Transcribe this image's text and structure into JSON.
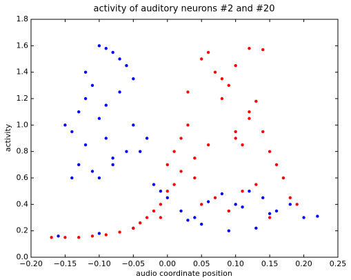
{
  "chart_data": {
    "type": "scatter",
    "title": "activity of auditory neurons #2 and #20",
    "x_label": "audio coordinate position",
    "y_label": "activity",
    "xlim": [
      -0.2,
      0.25
    ],
    "ylim": [
      0,
      1.8
    ],
    "xticks": [
      {
        "value": -0.2,
        "label": "−0.20"
      },
      {
        "value": -0.15,
        "label": "−0.15"
      },
      {
        "value": -0.1,
        "label": "−0.10"
      },
      {
        "value": -0.05,
        "label": "−0.05"
      },
      {
        "value": 0,
        "label": "0.00"
      },
      {
        "value": 0.05,
        "label": "0.05"
      },
      {
        "value": 0.1,
        "label": "0.10"
      },
      {
        "value": 0.15,
        "label": "0.15"
      },
      {
        "value": 0.2,
        "label": "0.20"
      },
      {
        "value": 0.25,
        "label": "0.25"
      }
    ],
    "yticks": [
      {
        "value": 0,
        "label": "0.0"
      },
      0.2,
      0.4,
      0.6,
      0.8,
      {
        "value": 1,
        "label": "1.0"
      },
      1.2,
      1.4,
      1.6,
      1.8
    ],
    "grid": false,
    "series": [
      {
        "color": "#0000ff",
        "x": [
          -0.12,
          -0.1,
          -0.09,
          -0.08,
          -0.11,
          -0.13,
          -0.14,
          -0.1,
          -0.07,
          -0.06,
          -0.05,
          -0.09,
          -0.12,
          -0.08,
          -0.04,
          -0.15,
          -0.13,
          -0.11,
          -0.09,
          -0.07,
          -0.05,
          -0.03,
          -0.1,
          -0.08,
          -0.06,
          -0.12,
          -0.14,
          -0.02,
          -0.01,
          0.0,
          0.02,
          0.04,
          0.06,
          0.08,
          0.1,
          0.12,
          0.14,
          0.16,
          0.18,
          0.2,
          0.22,
          0.05,
          0.09,
          0.13,
          0.03,
          0.11,
          0.15,
          -0.16,
          -0.1,
          -0.05
        ],
        "y": [
          1.2,
          1.6,
          1.58,
          1.55,
          1.3,
          1.1,
          0.95,
          1.05,
          1.5,
          1.45,
          1.35,
          0.9,
          0.85,
          0.75,
          0.8,
          1.0,
          0.7,
          0.65,
          1.15,
          1.25,
          1.0,
          0.9,
          0.6,
          0.7,
          0.8,
          1.4,
          0.6,
          0.55,
          0.5,
          0.45,
          0.35,
          0.3,
          0.42,
          0.48,
          0.4,
          0.5,
          0.45,
          0.35,
          0.4,
          0.3,
          0.31,
          0.25,
          0.2,
          0.22,
          0.28,
          0.38,
          0.33,
          0.16,
          0.18,
          0.22
        ]
      },
      {
        "color": "#ff0000",
        "x": [
          -0.17,
          -0.15,
          -0.13,
          -0.11,
          -0.09,
          -0.07,
          -0.05,
          -0.04,
          -0.03,
          -0.02,
          -0.01,
          0.0,
          0.0,
          0.01,
          0.02,
          0.03,
          0.04,
          0.05,
          0.06,
          0.07,
          0.08,
          0.09,
          0.1,
          0.11,
          0.12,
          0.13,
          0.14,
          0.15,
          0.16,
          0.17,
          0.05,
          0.07,
          0.09,
          0.11,
          0.13,
          0.15,
          0.1,
          0.12,
          0.14,
          0.08,
          0.02,
          0.04,
          0.06,
          0.1,
          0.12,
          0.18,
          0.19,
          0.03,
          0.01,
          -0.01
        ],
        "y": [
          0.15,
          0.15,
          0.15,
          0.16,
          0.17,
          0.19,
          0.22,
          0.26,
          0.3,
          0.35,
          0.4,
          0.5,
          0.7,
          0.8,
          0.9,
          1.0,
          0.6,
          1.5,
          1.55,
          1.4,
          1.2,
          1.3,
          0.9,
          0.85,
          1.1,
          1.18,
          0.95,
          0.8,
          0.7,
          0.6,
          0.4,
          0.45,
          0.35,
          0.5,
          0.55,
          0.3,
          1.45,
          1.58,
          1.57,
          1.35,
          0.65,
          0.75,
          0.85,
          0.95,
          1.05,
          0.45,
          0.4,
          1.25,
          0.55,
          0.3
        ]
      }
    ]
  }
}
